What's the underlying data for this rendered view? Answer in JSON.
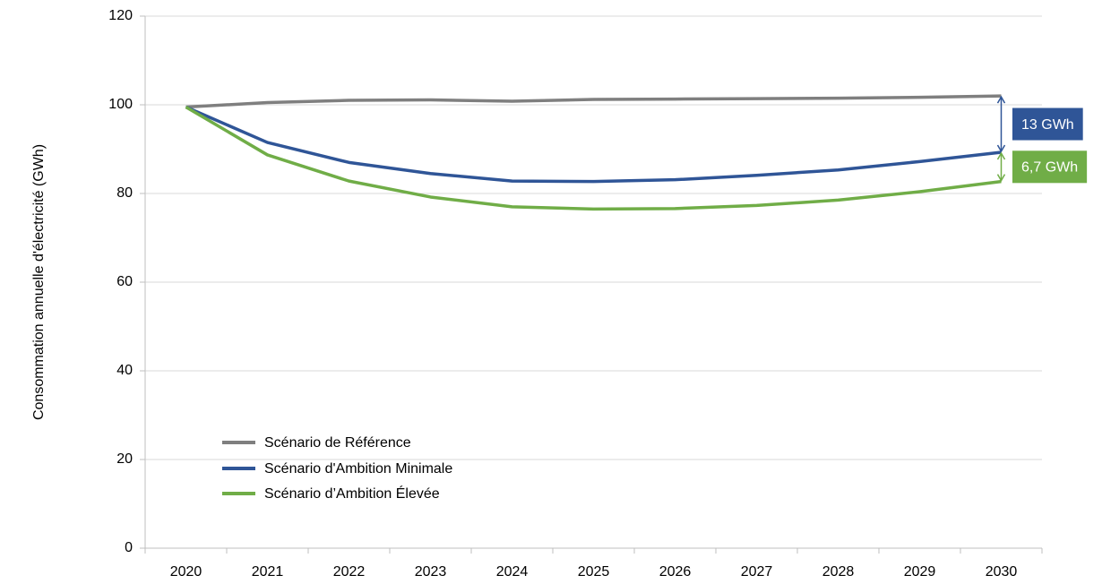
{
  "chart_data": {
    "type": "line",
    "ylabel": "Consommation annuelle d'électricité  (GWh)",
    "categories": [
      "2020",
      "2021",
      "2022",
      "2023",
      "2024",
      "2025",
      "2026",
      "2027",
      "2028",
      "2029",
      "2030"
    ],
    "series": [
      {
        "name": "Scénario de Référence",
        "color": "#7f7f7f",
        "values": [
          99.5,
          100.5,
          101,
          101.1,
          100.8,
          101.2,
          101.3,
          101.4,
          101.5,
          101.7,
          102
        ]
      },
      {
        "name": "Scénario d'Ambition Minimale",
        "color": "#2f5597",
        "values": [
          99.5,
          91.5,
          87,
          84.5,
          82.8,
          82.7,
          83.1,
          84.1,
          85.3,
          87.2,
          89.3
        ]
      },
      {
        "name": "Scénario d’Ambition Élevée",
        "color": "#70ad47",
        "values": [
          99.5,
          88.7,
          82.8,
          79.2,
          77,
          76.5,
          76.6,
          77.3,
          78.5,
          80.4,
          82.7
        ]
      }
    ],
    "annotations": [
      {
        "text": "13 GWh",
        "color": "#2f5597"
      },
      {
        "text": "6,7 GWh",
        "color": "#70ad47"
      }
    ],
    "ylim": [
      0,
      120
    ],
    "yticks": [
      0,
      20,
      40,
      60,
      80,
      100,
      120
    ],
    "grid": true,
    "legend": "lower left"
  }
}
